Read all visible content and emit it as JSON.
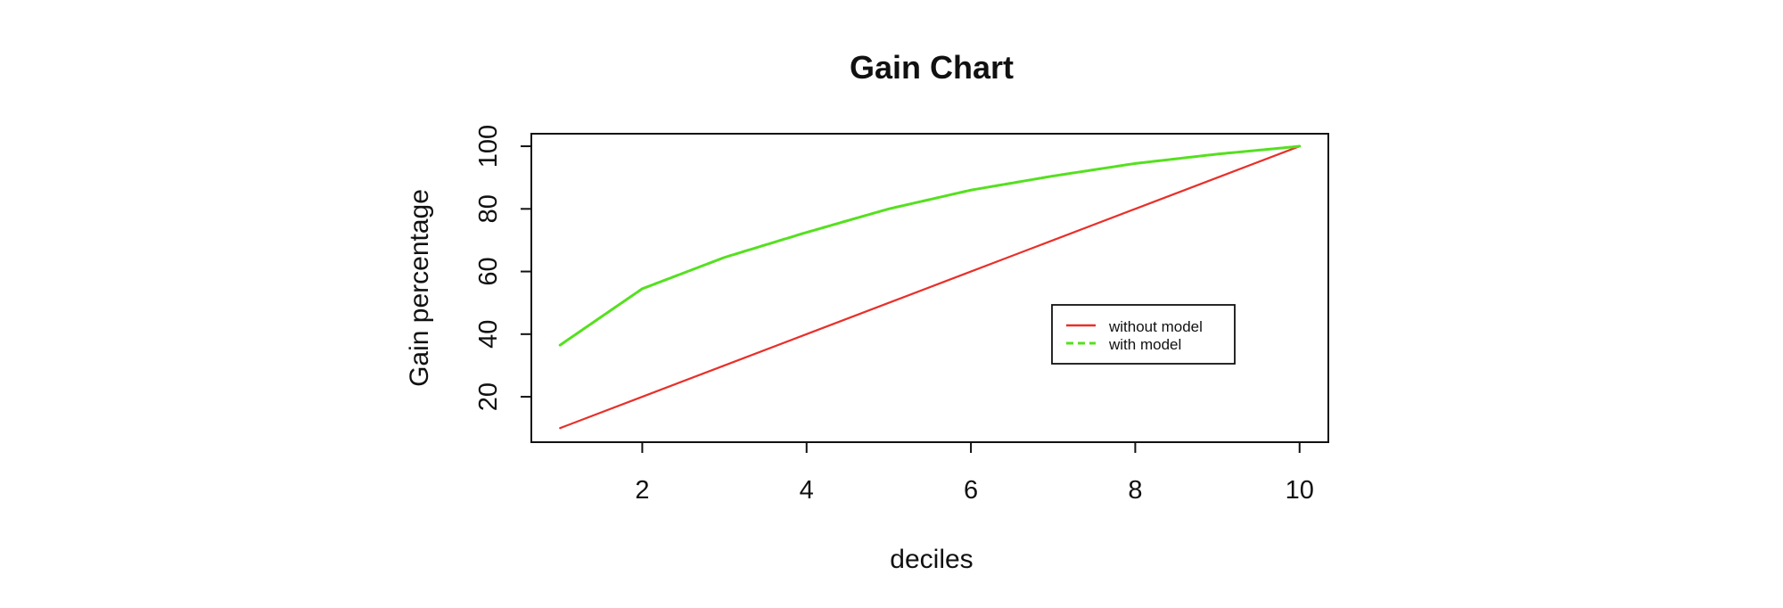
{
  "chart_data": {
    "type": "line",
    "title": "Gain Chart",
    "xlabel": "deciles",
    "ylabel": "Gain percentage",
    "x": [
      1,
      2,
      3,
      4,
      5,
      6,
      7,
      8,
      9,
      10
    ],
    "xlim": [
      0.65,
      10.35
    ],
    "ylim": [
      5.5,
      104
    ],
    "x_ticks": [
      2,
      4,
      6,
      8,
      10
    ],
    "y_ticks": [
      20,
      40,
      60,
      80,
      100
    ],
    "grid": false,
    "legend": {
      "position": "right",
      "entries": [
        "without model",
        "with model"
      ]
    },
    "series": [
      {
        "name": "without model",
        "values": [
          10,
          20,
          30,
          40,
          50,
          60,
          70,
          80,
          90,
          100
        ],
        "color": "#e8302a",
        "dash": "solid"
      },
      {
        "name": "with model",
        "values": [
          36.5,
          54.5,
          64.5,
          72.5,
          80,
          86,
          90.5,
          94.5,
          97.5,
          100
        ],
        "color": "#55e01f",
        "dash": "dashed"
      }
    ]
  }
}
